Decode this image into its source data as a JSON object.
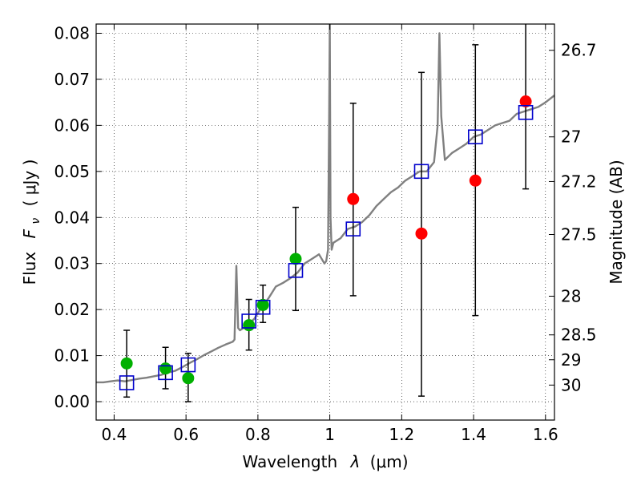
{
  "chart_data": {
    "type": "scatter",
    "xlabel_text": "Wavelength",
    "xlabel_symbol": "λ",
    "xlabel_unit": "(μm)",
    "ylabel_text": "Flux",
    "ylabel_symbol": "F",
    "ylabel_subscript": "ν",
    "ylabel_unit": "( μJy )",
    "ylabel_right": "Magnitude (AB)",
    "xlim": [
      0.35,
      1.625
    ],
    "ylim": [
      -0.004,
      0.082
    ],
    "grid": true,
    "x_ticks": [
      {
        "value": 0.4,
        "label": "0.4"
      },
      {
        "value": 0.6,
        "label": "0.6"
      },
      {
        "value": 0.8,
        "label": "0.8"
      },
      {
        "value": 1.0,
        "label": "1"
      },
      {
        "value": 1.2,
        "label": "1.2"
      },
      {
        "value": 1.4,
        "label": "1.4"
      },
      {
        "value": 1.6,
        "label": "1.6"
      }
    ],
    "y_ticks": [
      {
        "value": 0.0,
        "label": "0.00"
      },
      {
        "value": 0.01,
        "label": "0.01"
      },
      {
        "value": 0.02,
        "label": "0.02"
      },
      {
        "value": 0.03,
        "label": "0.03"
      },
      {
        "value": 0.04,
        "label": "0.04"
      },
      {
        "value": 0.05,
        "label": "0.05"
      },
      {
        "value": 0.06,
        "label": "0.06"
      },
      {
        "value": 0.07,
        "label": "0.07"
      },
      {
        "value": 0.08,
        "label": "0.08"
      }
    ],
    "right_ticks": [
      {
        "label": "26.7",
        "flux": 0.0763
      },
      {
        "label": "27",
        "flux": 0.0575
      },
      {
        "label": "27.2",
        "flux": 0.0478
      },
      {
        "label": "27.5",
        "flux": 0.0363
      },
      {
        "label": "28",
        "flux": 0.0229
      },
      {
        "label": "28.5",
        "flux": 0.0145
      },
      {
        "label": "29",
        "flux": 0.0091
      },
      {
        "label": "30",
        "flux": 0.0036
      }
    ],
    "sed_model": {
      "color": "#808080",
      "x": [
        0.35,
        0.37,
        0.39,
        0.41,
        0.43,
        0.45,
        0.47,
        0.49,
        0.51,
        0.53,
        0.55,
        0.57,
        0.59,
        0.61,
        0.63,
        0.65,
        0.67,
        0.69,
        0.71,
        0.73,
        0.735,
        0.74,
        0.745,
        0.75,
        0.77,
        0.79,
        0.81,
        0.83,
        0.85,
        0.87,
        0.89,
        0.91,
        0.93,
        0.95,
        0.97,
        0.985,
        0.99,
        0.995,
        0.998,
        1.0,
        1.002,
        1.005,
        1.01,
        1.03,
        1.05,
        1.07,
        1.09,
        1.11,
        1.13,
        1.15,
        1.17,
        1.19,
        1.21,
        1.23,
        1.25,
        1.27,
        1.29,
        1.3,
        1.305,
        1.31,
        1.32,
        1.34,
        1.36,
        1.38,
        1.4,
        1.42,
        1.44,
        1.46,
        1.48,
        1.5,
        1.52,
        1.54,
        1.56,
        1.58,
        1.6,
        1.625
      ],
      "y": [
        0.0042,
        0.0042,
        0.0044,
        0.0046,
        0.0044,
        0.0047,
        0.005,
        0.0052,
        0.0055,
        0.0058,
        0.0063,
        0.0067,
        0.0075,
        0.0084,
        0.0092,
        0.0101,
        0.0109,
        0.0117,
        0.0124,
        0.013,
        0.0135,
        0.0295,
        0.016,
        0.0155,
        0.0165,
        0.018,
        0.0205,
        0.0225,
        0.025,
        0.0258,
        0.0268,
        0.028,
        0.03,
        0.031,
        0.032,
        0.03,
        0.0305,
        0.033,
        0.06,
        0.082,
        0.04,
        0.033,
        0.0345,
        0.0355,
        0.0375,
        0.038,
        0.039,
        0.0405,
        0.0425,
        0.044,
        0.0455,
        0.0465,
        0.048,
        0.049,
        0.05,
        0.05,
        0.052,
        0.06,
        0.08,
        0.062,
        0.0525,
        0.054,
        0.055,
        0.056,
        0.0575,
        0.058,
        0.059,
        0.06,
        0.0605,
        0.061,
        0.0625,
        0.063,
        0.0635,
        0.064,
        0.065,
        0.0665
      ]
    },
    "errorbars": [
      {
        "x": 0.435,
        "low": 0.001,
        "high": 0.0155
      },
      {
        "x": 0.543,
        "low": 0.0028,
        "high": 0.0118
      },
      {
        "x": 0.606,
        "low": 0.0,
        "high": 0.0105
      },
      {
        "x": 0.775,
        "low": 0.0112,
        "high": 0.0222
      },
      {
        "x": 0.814,
        "low": 0.0172,
        "high": 0.0253
      },
      {
        "x": 0.905,
        "low": 0.0198,
        "high": 0.0422
      },
      {
        "x": 1.065,
        "low": 0.023,
        "high": 0.0648
      },
      {
        "x": 1.255,
        "low": 0.0012,
        "high": 0.0715
      },
      {
        "x": 1.405,
        "low": 0.0187,
        "high": 0.0775
      },
      {
        "x": 1.545,
        "low": 0.0462,
        "high": 0.083
      }
    ],
    "series": [
      {
        "marker": "circle",
        "color": "#00b000",
        "points": [
          {
            "x": 0.435,
            "y": 0.0083
          },
          {
            "x": 0.543,
            "y": 0.0072
          },
          {
            "x": 0.606,
            "y": 0.0051
          },
          {
            "x": 0.775,
            "y": 0.0166
          },
          {
            "x": 0.814,
            "y": 0.021
          },
          {
            "x": 0.905,
            "y": 0.031
          }
        ]
      },
      {
        "marker": "circle",
        "color": "#ff0000",
        "points": [
          {
            "x": 1.065,
            "y": 0.044
          },
          {
            "x": 1.255,
            "y": 0.0365
          },
          {
            "x": 1.405,
            "y": 0.048
          },
          {
            "x": 1.545,
            "y": 0.0652
          }
        ]
      },
      {
        "marker": "open-square",
        "color": "#0000cc",
        "points": [
          {
            "x": 0.435,
            "y": 0.0041
          },
          {
            "x": 0.543,
            "y": 0.0063
          },
          {
            "x": 0.606,
            "y": 0.008
          },
          {
            "x": 0.775,
            "y": 0.0175
          },
          {
            "x": 0.814,
            "y": 0.0205
          },
          {
            "x": 0.905,
            "y": 0.0285
          },
          {
            "x": 1.065,
            "y": 0.0375
          },
          {
            "x": 1.255,
            "y": 0.05
          },
          {
            "x": 1.405,
            "y": 0.0575
          },
          {
            "x": 1.545,
            "y": 0.0628
          }
        ]
      }
    ]
  }
}
